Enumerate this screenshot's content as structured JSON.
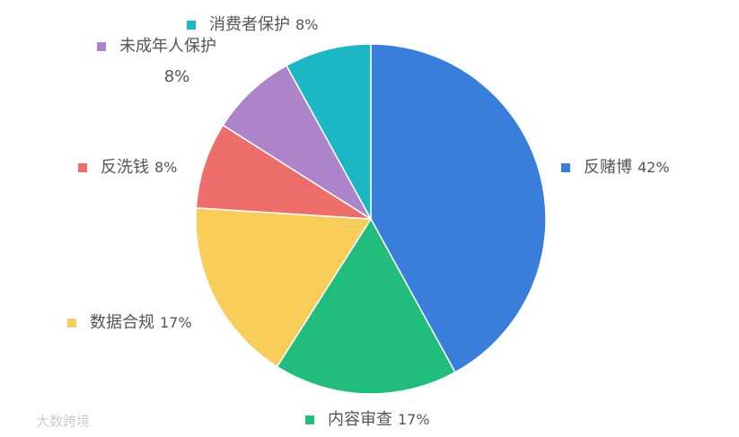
{
  "chart_data": {
    "type": "pie",
    "categories": [
      "反赌博",
      "内容审查",
      "数据合规",
      "反洗钱",
      "未成年人保护",
      "消费者保护"
    ],
    "values": [
      42,
      17,
      17,
      8,
      8,
      8
    ],
    "value_labels": [
      "42%",
      "17%",
      "17%",
      "8%",
      "8%",
      "8%"
    ],
    "colors": [
      "#3a7edc",
      "#20bd7c",
      "#f8cd5a",
      "#ec6d6a",
      "#ad84c9",
      "#1bb7c5"
    ]
  },
  "watermark": "大数跨境"
}
